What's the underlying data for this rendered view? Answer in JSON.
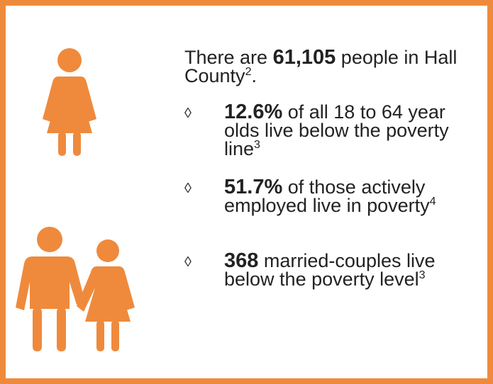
{
  "intro": {
    "prefix": "There are",
    "number": "61,105",
    "suffix": "people in Hall County",
    "note": "2",
    "end": "."
  },
  "bullets": [
    {
      "marker": "◊",
      "value": "12.6%",
      "text": "of all 18 to 64 year olds live below the poverty line",
      "note": "3"
    },
    {
      "marker": "◊",
      "value": "51.7%",
      "text": "of those actively employed live in poverty",
      "note": "4"
    },
    {
      "marker": "◊",
      "value": "368",
      "text": "married-couples live below the poverty level",
      "note": "3"
    }
  ]
}
